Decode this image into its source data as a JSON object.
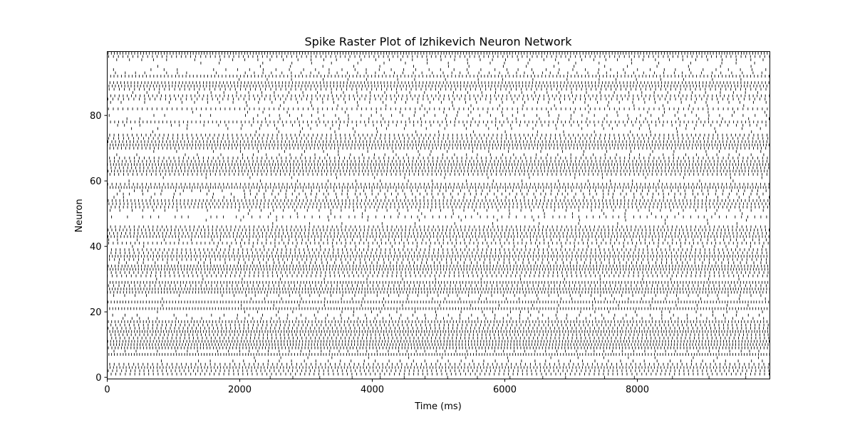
{
  "chart_data": {
    "type": "raster",
    "title": "Spike Raster Plot of Izhikevich Neuron Network",
    "xlabel": "Time (ms)",
    "ylabel": "Neuron",
    "xlim": [
      0,
      10000
    ],
    "ylim": [
      -0.5,
      99.5
    ],
    "xticks": [
      0,
      2000,
      4000,
      6000,
      8000
    ],
    "yticks": [
      0,
      20,
      40,
      60,
      80
    ],
    "spike_color": "#000000",
    "grid": false,
    "transition_time_ms": 2000
  }
}
